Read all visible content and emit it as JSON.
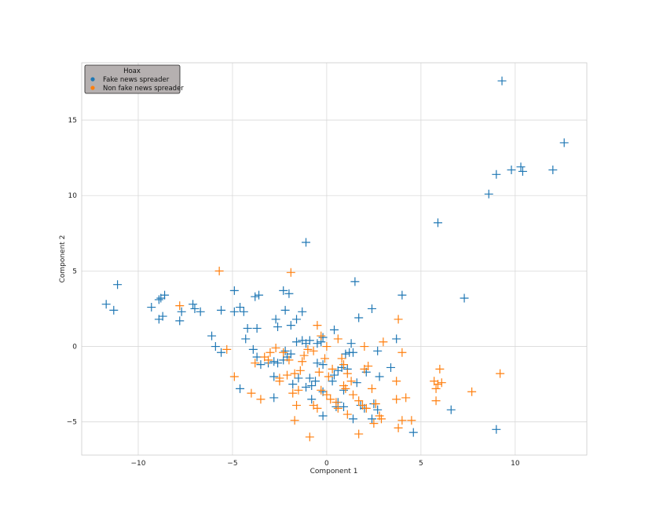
{
  "chart_data": {
    "type": "scatter",
    "title": "",
    "xlabel": "Component 1",
    "ylabel": "Component 2",
    "xlim": [
      -13,
      13.8
    ],
    "ylim": [
      -7.2,
      18.8
    ],
    "xticks": [
      -10,
      -5,
      0,
      5,
      10
    ],
    "yticks": [
      -5,
      0,
      5,
      10,
      15
    ],
    "grid": true,
    "marker": "plus",
    "legend": {
      "title": "Hoax",
      "placement": "top-left",
      "entries": [
        "Fake news spreader",
        "Non fake news spreader"
      ]
    },
    "colors": {
      "fake": "#1f77b4",
      "nonfake": "#ff7f0e",
      "legend_bg": "#b5b0b0"
    },
    "series": [
      {
        "name": "Fake news spreader",
        "color": "#1f77b4",
        "points": [
          [
            9.3,
            17.6
          ],
          [
            12.6,
            13.5
          ],
          [
            10.3,
            11.9
          ],
          [
            10.4,
            11.6
          ],
          [
            9.8,
            11.7
          ],
          [
            12.0,
            11.7
          ],
          [
            9.0,
            11.4
          ],
          [
            8.6,
            10.1
          ],
          [
            5.9,
            8.2
          ],
          [
            -1.1,
            6.9
          ],
          [
            -11.1,
            4.1
          ],
          [
            -11.7,
            2.8
          ],
          [
            -11.3,
            2.4
          ],
          [
            -8.6,
            3.4
          ],
          [
            -8.8,
            3.2
          ],
          [
            -8.9,
            3.1
          ],
          [
            -9.3,
            2.6
          ],
          [
            -8.7,
            2.0
          ],
          [
            -8.9,
            1.8
          ],
          [
            -7.8,
            1.7
          ],
          [
            -7.7,
            2.3
          ],
          [
            -7.1,
            2.8
          ],
          [
            -7.0,
            2.5
          ],
          [
            -6.7,
            2.3
          ],
          [
            -6.1,
            0.7
          ],
          [
            -5.9,
            0.0
          ],
          [
            -5.6,
            -0.4
          ],
          [
            -5.6,
            2.4
          ],
          [
            -4.9,
            3.7
          ],
          [
            -4.9,
            2.3
          ],
          [
            -4.6,
            2.6
          ],
          [
            -4.4,
            2.3
          ],
          [
            -3.8,
            3.3
          ],
          [
            -3.6,
            3.4
          ],
          [
            -4.2,
            1.2
          ],
          [
            -3.7,
            1.2
          ],
          [
            -4.3,
            0.5
          ],
          [
            -3.9,
            -0.2
          ],
          [
            -3.7,
            -0.7
          ],
          [
            -2.3,
            3.7
          ],
          [
            -2.0,
            3.5
          ],
          [
            -2.2,
            2.4
          ],
          [
            -1.6,
            1.8
          ],
          [
            -1.3,
            2.3
          ],
          [
            -2.7,
            1.8
          ],
          [
            -2.6,
            1.3
          ],
          [
            -1.9,
            1.4
          ],
          [
            -2.2,
            -0.3
          ],
          [
            -1.9,
            -0.5
          ],
          [
            -2.3,
            -0.9
          ],
          [
            -2.8,
            -1.0
          ],
          [
            -3.1,
            -1.1
          ],
          [
            -2.6,
            -1.1
          ],
          [
            -4.6,
            -2.8
          ],
          [
            -2.8,
            -2.0
          ],
          [
            -2.8,
            -3.4
          ],
          [
            -1.5,
            -2.1
          ],
          [
            -1.6,
            0.3
          ],
          [
            -1.3,
            0.4
          ],
          [
            -1.1,
            0.2
          ],
          [
            -0.9,
            0.4
          ],
          [
            -0.5,
            0.2
          ],
          [
            -0.2,
            0.6
          ],
          [
            -0.3,
            0.3
          ],
          [
            0.4,
            1.1
          ],
          [
            -0.5,
            -1.1
          ],
          [
            -0.2,
            -1.2
          ],
          [
            -0.9,
            -2.1
          ],
          [
            -0.6,
            -2.3
          ],
          [
            -0.8,
            -2.6
          ],
          [
            -0.2,
            -3.0
          ],
          [
            0.6,
            -1.6
          ],
          [
            0.8,
            -1.4
          ],
          [
            0.4,
            -1.9
          ],
          [
            1.2,
            -0.4
          ],
          [
            1.3,
            0.2
          ],
          [
            1.0,
            -0.5
          ],
          [
            1.4,
            -0.4
          ],
          [
            1.5,
            4.3
          ],
          [
            1.7,
            1.9
          ],
          [
            2.4,
            2.5
          ],
          [
            3.7,
            0.5
          ],
          [
            4.0,
            3.4
          ],
          [
            3.4,
            -1.4
          ],
          [
            2.8,
            -2.0
          ],
          [
            2.7,
            -0.3
          ],
          [
            2.1,
            -1.7
          ],
          [
            2.5,
            -3.8
          ],
          [
            2.7,
            -4.2
          ],
          [
            2.4,
            -4.8
          ],
          [
            1.8,
            -3.9
          ],
          [
            1.4,
            -4.8
          ],
          [
            0.9,
            -4.0
          ],
          [
            0.6,
            -3.7
          ],
          [
            0.5,
            -4.0
          ],
          [
            -0.2,
            -4.6
          ],
          [
            -0.8,
            -3.5
          ],
          [
            0.3,
            -2.3
          ],
          [
            1.1,
            -1.5
          ],
          [
            1.6,
            -2.4
          ],
          [
            4.6,
            -5.7
          ],
          [
            6.6,
            -4.2
          ],
          [
            7.3,
            3.2
          ],
          [
            9.0,
            -5.5
          ],
          [
            -1.8,
            -2.5
          ],
          [
            -1.1,
            -2.7
          ],
          [
            -2.1,
            -0.7
          ],
          [
            -3.5,
            -1.2
          ],
          [
            0.9,
            -2.9
          ],
          [
            2.0,
            -4.1
          ]
        ]
      },
      {
        "name": "Non fake news spreader",
        "color": "#ff7f0e",
        "points": [
          [
            -5.7,
            5.0
          ],
          [
            -1.9,
            4.9
          ],
          [
            -7.8,
            2.7
          ],
          [
            -5.3,
            -0.2
          ],
          [
            -4.9,
            -2.0
          ],
          [
            -4.0,
            -3.1
          ],
          [
            -3.5,
            -3.5
          ],
          [
            -3.8,
            -1.1
          ],
          [
            -3.3,
            -0.7
          ],
          [
            -3.1,
            -0.9
          ],
          [
            -2.7,
            -0.1
          ],
          [
            -2.3,
            -0.4
          ],
          [
            -2.0,
            -0.9
          ],
          [
            -2.1,
            -1.9
          ],
          [
            -2.5,
            -2.1
          ],
          [
            -2.5,
            -2.3
          ],
          [
            -1.7,
            -1.8
          ],
          [
            -1.4,
            -1.6
          ],
          [
            -1.8,
            -3.1
          ],
          [
            -1.6,
            -3.9
          ],
          [
            -1.7,
            -4.9
          ],
          [
            -1.2,
            -0.6
          ],
          [
            -1.3,
            -1.0
          ],
          [
            -1.0,
            -0.2
          ],
          [
            -0.7,
            -0.3
          ],
          [
            -0.5,
            1.4
          ],
          [
            -0.3,
            0.7
          ],
          [
            0.0,
            0.0
          ],
          [
            -0.1,
            -0.8
          ],
          [
            -0.4,
            -1.7
          ],
          [
            0.1,
            -2.0
          ],
          [
            -0.3,
            -2.9
          ],
          [
            0.0,
            -3.2
          ],
          [
            0.2,
            -3.5
          ],
          [
            0.5,
            -3.7
          ],
          [
            0.6,
            -4.1
          ],
          [
            0.6,
            0.5
          ],
          [
            0.8,
            -0.8
          ],
          [
            0.9,
            -1.2
          ],
          [
            1.1,
            -1.8
          ],
          [
            1.3,
            -2.3
          ],
          [
            0.9,
            -2.6
          ],
          [
            1.0,
            -2.8
          ],
          [
            1.4,
            -3.2
          ],
          [
            1.7,
            -3.6
          ],
          [
            1.9,
            -3.9
          ],
          [
            2.1,
            -4.1
          ],
          [
            2.0,
            -1.5
          ],
          [
            2.2,
            -1.3
          ],
          [
            2.0,
            0.0
          ],
          [
            2.4,
            -2.8
          ],
          [
            2.6,
            -3.8
          ],
          [
            2.8,
            -4.6
          ],
          [
            2.9,
            -4.8
          ],
          [
            3.0,
            0.3
          ],
          [
            3.8,
            1.8
          ],
          [
            4.0,
            -0.4
          ],
          [
            3.7,
            -2.3
          ],
          [
            3.7,
            -3.5
          ],
          [
            4.2,
            -3.4
          ],
          [
            4.0,
            -4.9
          ],
          [
            3.8,
            -5.4
          ],
          [
            4.5,
            -4.9
          ],
          [
            5.7,
            -2.3
          ],
          [
            5.9,
            -2.5
          ],
          [
            6.0,
            -1.5
          ],
          [
            6.1,
            -2.4
          ],
          [
            5.8,
            -2.8
          ],
          [
            5.8,
            -3.6
          ],
          [
            7.7,
            -3.0
          ],
          [
            9.2,
            -1.8
          ],
          [
            2.5,
            -5.1
          ],
          [
            1.7,
            -5.8
          ],
          [
            -0.9,
            -6.0
          ],
          [
            1.1,
            -4.5
          ],
          [
            -0.7,
            -3.9
          ],
          [
            -1.5,
            -2.9
          ],
          [
            0.3,
            -1.5
          ],
          [
            -0.5,
            -4.1
          ],
          [
            -3.0,
            -0.4
          ]
        ]
      }
    ]
  }
}
